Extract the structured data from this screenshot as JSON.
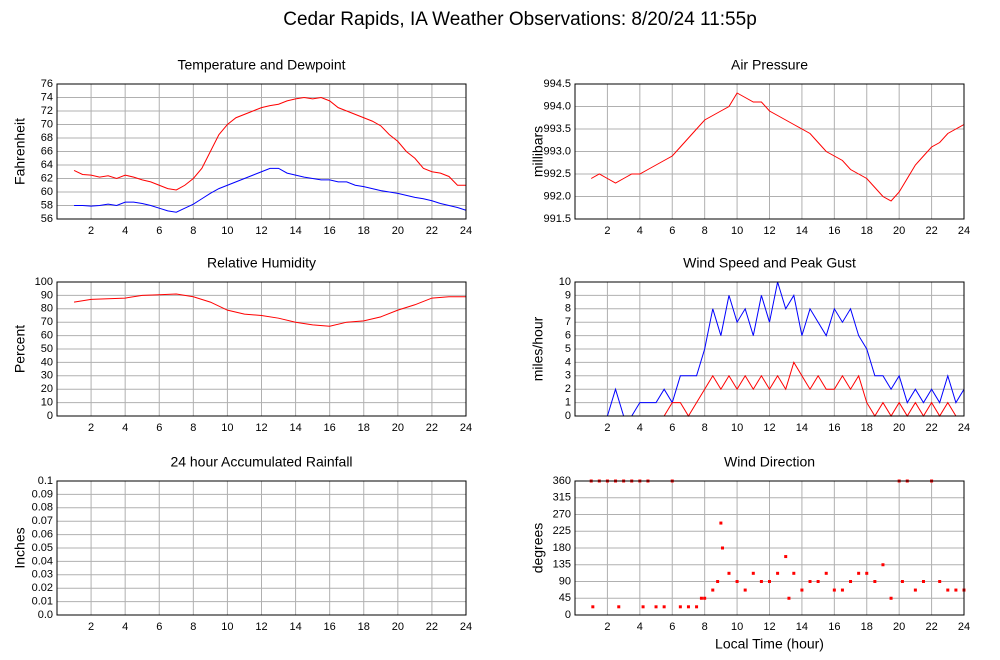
{
  "title": "Cedar Rapids, IA Weather Observations: 8/20/24 11:55p",
  "chart_data": [
    {
      "type": "line",
      "title": "Temperature and Dewpoint",
      "y_label": "Fahrenheit",
      "grid": true,
      "xlim": [
        0,
        24
      ],
      "xticks": [
        2,
        4,
        6,
        8,
        10,
        12,
        14,
        16,
        18,
        20,
        22,
        24
      ],
      "ylim": [
        56,
        76
      ],
      "yticks": [
        56,
        58,
        60,
        62,
        64,
        66,
        68,
        70,
        72,
        74,
        76
      ],
      "x": [
        1,
        1.5,
        2,
        2.5,
        3,
        3.5,
        4,
        4.5,
        5,
        5.5,
        6,
        6.5,
        7,
        7.5,
        8,
        8.5,
        9,
        9.5,
        10,
        10.5,
        11,
        11.5,
        12,
        12.5,
        13,
        13.5,
        14,
        14.5,
        15,
        15.5,
        16,
        16.5,
        17,
        17.5,
        18,
        18.5,
        19,
        19.5,
        20,
        20.5,
        21,
        21.5,
        22,
        22.5,
        23,
        23.5,
        24
      ],
      "series": [
        {
          "color": "#ff0000",
          "values": [
            63.2,
            62.6,
            62.5,
            62.2,
            62.4,
            62.0,
            62.5,
            62.2,
            61.8,
            61.5,
            61.0,
            60.5,
            60.3,
            61.0,
            62.0,
            63.5,
            66,
            68.5,
            70,
            71,
            71.5,
            72,
            72.5,
            72.8,
            73,
            73.5,
            73.8,
            74,
            73.8,
            74,
            73.5,
            72.5,
            72,
            71.5,
            71,
            70.5,
            69.8,
            68.5,
            67.5,
            66,
            65,
            63.5,
            63,
            62.8,
            62.3,
            61,
            61
          ]
        },
        {
          "color": "#0000ff",
          "values": [
            58,
            58,
            57.9,
            58,
            58.2,
            58,
            58.5,
            58.5,
            58.3,
            58,
            57.6,
            57.2,
            57,
            57.6,
            58.2,
            59,
            59.8,
            60.5,
            61,
            61.5,
            62,
            62.5,
            63,
            63.5,
            63.5,
            62.8,
            62.5,
            62.2,
            62,
            61.8,
            61.8,
            61.5,
            61.5,
            61,
            60.8,
            60.5,
            60.2,
            60,
            59.8,
            59.5,
            59.2,
            59,
            58.7,
            58.3,
            58,
            57.7,
            57.3
          ]
        }
      ]
    },
    {
      "type": "line",
      "title": "Air Pressure",
      "y_label": "millibars",
      "grid": true,
      "xlim": [
        0,
        24
      ],
      "xticks": [
        2,
        4,
        6,
        8,
        10,
        12,
        14,
        16,
        18,
        20,
        22,
        24
      ],
      "ylim": [
        991.5,
        994.5
      ],
      "yticks": [
        991.5,
        {
          "value": 992,
          "label": "992.0"
        },
        992.5,
        {
          "value": 993,
          "label": "993.0"
        },
        993.5,
        {
          "value": 994,
          "label": "994.0"
        },
        994.5
      ],
      "x": [
        1,
        1.5,
        2,
        2.5,
        3,
        3.5,
        4,
        4.5,
        5,
        5.5,
        6,
        6.5,
        7,
        7.5,
        8,
        8.5,
        9,
        9.5,
        10,
        10.5,
        11,
        11.5,
        12,
        12.5,
        13,
        13.5,
        14,
        14.5,
        15,
        15.5,
        16,
        16.5,
        17,
        17.5,
        18,
        18.5,
        19,
        19.5,
        20,
        20.5,
        21,
        21.5,
        22,
        22.5,
        23,
        23.5,
        24
      ],
      "series": [
        {
          "color": "#ff0000",
          "values": [
            992.4,
            992.5,
            992.4,
            992.3,
            992.4,
            992.5,
            992.5,
            992.6,
            992.7,
            992.8,
            992.9,
            993.1,
            993.3,
            993.5,
            993.7,
            993.8,
            993.9,
            994.0,
            994.3,
            994.2,
            994.1,
            994.1,
            993.9,
            993.8,
            993.7,
            993.6,
            993.5,
            993.4,
            993.2,
            993.0,
            992.9,
            992.8,
            992.6,
            992.5,
            992.4,
            992.2,
            992.0,
            991.9,
            992.1,
            992.4,
            992.7,
            992.9,
            993.1,
            993.2,
            993.4,
            993.5,
            993.6
          ]
        }
      ]
    },
    {
      "type": "line",
      "title": "Relative Humidity",
      "y_label": "Percent",
      "grid": true,
      "xlim": [
        0,
        24
      ],
      "xticks": [
        2,
        4,
        6,
        8,
        10,
        12,
        14,
        16,
        18,
        20,
        22,
        24
      ],
      "ylim": [
        0,
        100
      ],
      "yticks": [
        0,
        10,
        20,
        30,
        40,
        50,
        60,
        70,
        80,
        90,
        100
      ],
      "x": [
        1,
        2,
        3,
        4,
        5,
        6,
        7,
        8,
        9,
        10,
        11,
        12,
        13,
        14,
        15,
        16,
        17,
        18,
        19,
        20,
        21,
        22,
        23,
        24
      ],
      "series": [
        {
          "color": "#ff0000",
          "values": [
            85,
            87,
            87.5,
            88,
            90,
            90.5,
            91,
            89,
            85,
            79,
            76,
            75,
            73,
            70,
            68,
            67,
            70,
            71,
            74,
            79,
            83,
            88,
            89,
            89
          ]
        }
      ]
    },
    {
      "type": "line",
      "title": "Wind Speed and Peak Gust",
      "y_label": "miles/hour",
      "grid": true,
      "xlim": [
        0,
        24
      ],
      "xticks": [
        2,
        4,
        6,
        8,
        10,
        12,
        14,
        16,
        18,
        20,
        22,
        24
      ],
      "ylim": [
        0,
        10
      ],
      "yticks": [
        0,
        1,
        2,
        3,
        4,
        5,
        6,
        7,
        8,
        9,
        10
      ],
      "x": [
        1,
        1.5,
        2,
        2.5,
        3,
        3.5,
        4,
        4.5,
        5,
        5.5,
        6,
        6.5,
        7,
        7.5,
        8,
        8.5,
        9,
        9.5,
        10,
        10.5,
        11,
        11.5,
        12,
        12.5,
        13,
        13.5,
        14,
        14.5,
        15,
        15.5,
        16,
        16.5,
        17,
        17.5,
        18,
        18.5,
        19,
        19.5,
        20,
        20.5,
        21,
        21.5,
        22,
        22.5,
        23,
        23.5,
        24
      ],
      "series": [
        {
          "color": "#0000ff",
          "values": [
            0,
            0,
            0,
            2,
            0,
            0,
            1,
            1,
            1,
            2,
            1,
            3,
            3,
            3,
            5,
            8,
            6,
            9,
            7,
            8,
            6,
            9,
            7,
            10,
            8,
            9,
            6,
            8,
            7,
            6,
            8,
            7,
            8,
            6,
            5,
            3,
            3,
            2,
            3,
            1,
            2,
            1,
            2,
            1,
            3,
            1,
            2
          ]
        },
        {
          "color": "#ff0000",
          "values": [
            0,
            0,
            0,
            0,
            0,
            0,
            0,
            0,
            0,
            0,
            1,
            1,
            0,
            1,
            2,
            3,
            2,
            3,
            2,
            3,
            2,
            3,
            2,
            3,
            2,
            4,
            3,
            2,
            3,
            2,
            2,
            3,
            2,
            3,
            1,
            0,
            1,
            0,
            1,
            0,
            1,
            0,
            1,
            0,
            1,
            0,
            0
          ]
        }
      ]
    },
    {
      "type": "line",
      "title": "24 hour Accumulated Rainfall",
      "y_label": "Inches",
      "grid": true,
      "xlim": [
        0,
        24
      ],
      "xticks": [
        2,
        4,
        6,
        8,
        10,
        12,
        14,
        16,
        18,
        20,
        22,
        24
      ],
      "ylim": [
        0,
        0.1
      ],
      "yticks": [
        {
          "value": 0,
          "label": "0.0"
        },
        0.01,
        0.02,
        0.03,
        0.04,
        0.05,
        0.06,
        0.07,
        0.08,
        0.09,
        0.1
      ],
      "x": [
        1,
        24
      ],
      "series": [
        {
          "color": "#ff0000",
          "values": [
            0,
            0
          ]
        }
      ]
    },
    {
      "type": "scatter",
      "title": "Wind Direction",
      "y_label": "degrees",
      "x_label": "Local Time (hour)",
      "grid": true,
      "xlim": [
        0,
        24
      ],
      "xticks": [
        2,
        4,
        6,
        8,
        10,
        12,
        14,
        16,
        18,
        20,
        22,
        24
      ],
      "ylim": [
        0,
        360
      ],
      "yticks": [
        0,
        45,
        90,
        135,
        180,
        225,
        270,
        315,
        360
      ],
      "x": [
        1,
        1.1,
        1.5,
        2,
        2.5,
        2.7,
        3,
        3.5,
        4,
        4.2,
        4.5,
        5,
        5.5,
        6,
        6.5,
        7,
        7.5,
        7.8,
        8,
        8.5,
        8.8,
        9,
        9.1,
        9.5,
        10,
        10.5,
        11,
        11.5,
        12,
        12.5,
        13,
        13.2,
        13.5,
        14,
        14.5,
        15,
        15.5,
        16,
        16.5,
        17,
        17.5,
        18,
        18.5,
        19,
        19.5,
        20,
        20.2,
        20.5,
        21,
        21.5,
        22,
        22.5,
        23,
        23.5,
        24
      ],
      "series": [
        {
          "color": "#ff0000",
          "values": [
            360,
            22,
            360,
            360,
            360,
            22,
            360,
            360,
            360,
            22,
            360,
            22,
            22,
            360,
            22,
            22,
            22,
            45,
            45,
            67,
            90,
            247,
            180,
            112,
            90,
            67,
            112,
            90,
            90,
            112,
            157,
            45,
            112,
            67,
            90,
            90,
            112,
            67,
            67,
            90,
            112,
            112,
            90,
            135,
            45,
            360,
            90,
            360,
            67,
            90,
            360,
            90,
            67,
            67,
            67
          ]
        }
      ]
    }
  ]
}
